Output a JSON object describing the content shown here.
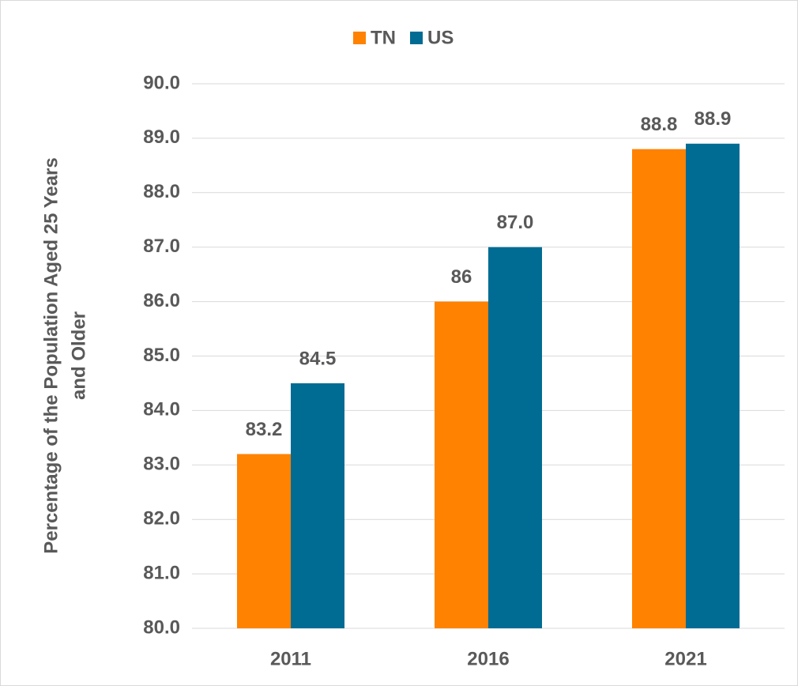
{
  "chart_data": {
    "type": "bar",
    "ylabel": [
      "Percentage of the Population Aged 25 Years",
      "and Older"
    ],
    "categories": [
      "2011",
      "2016",
      "2021"
    ],
    "series": [
      {
        "name": "TN",
        "color": "#ff8200",
        "values": [
          83.2,
          86,
          88.8
        ],
        "value_labels": [
          "83.2",
          "86",
          "88.8"
        ]
      },
      {
        "name": "US",
        "color": "#006c93",
        "values": [
          84.5,
          87.0,
          88.9
        ],
        "value_labels": [
          "84.5",
          "87.0",
          "88.9"
        ]
      }
    ],
    "ylim": [
      80,
      90
    ],
    "yticks": [
      {
        "value": 80,
        "label": "80.0"
      },
      {
        "value": 81,
        "label": "81.0"
      },
      {
        "value": 82,
        "label": "82.0"
      },
      {
        "value": 83,
        "label": "83.0"
      },
      {
        "value": 84,
        "label": "84.0"
      },
      {
        "value": 85,
        "label": "85.0"
      },
      {
        "value": 86,
        "label": "86.0"
      },
      {
        "value": 87,
        "label": "87.0"
      },
      {
        "value": 88,
        "label": "88.0"
      },
      {
        "value": 89,
        "label": "89.0"
      },
      {
        "value": 90,
        "label": "90.0"
      }
    ],
    "grid": true,
    "legend": "top"
  }
}
